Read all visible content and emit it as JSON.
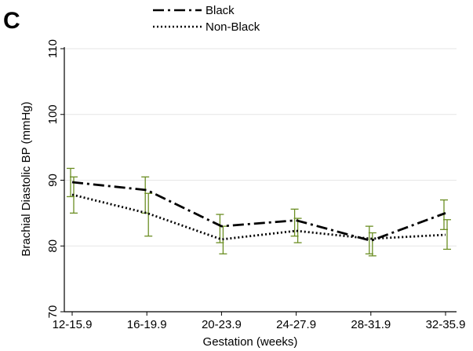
{
  "panel_label": "C",
  "chart_data": {
    "type": "line",
    "title": "",
    "xlabel": "Gestation (weeks)",
    "ylabel": "Brachial Diastolic BP (mmHg)",
    "categories": [
      "12-15.9",
      "16-19.9",
      "20-23.9",
      "24-27.9",
      "28-31.9",
      "32-35.9"
    ],
    "ylim": [
      70,
      110
    ],
    "yticks": [
      70,
      80,
      90,
      100,
      110
    ],
    "grid": true,
    "legend_position": "top-center",
    "series": [
      {
        "name": "Black",
        "style": "dash-dot",
        "values": [
          89.7,
          88.5,
          83.0,
          83.9,
          80.8,
          85.0
        ],
        "ci_low": [
          87.5,
          85.0,
          80.5,
          81.5,
          78.8,
          82.5
        ],
        "ci_high": [
          91.8,
          90.5,
          84.8,
          85.6,
          83.0,
          87.0
        ]
      },
      {
        "name": "Non-Black",
        "style": "dotted",
        "values": [
          87.8,
          85.0,
          81.0,
          82.3,
          81.1,
          81.7
        ],
        "ci_low": [
          85.0,
          81.5,
          78.8,
          80.5,
          78.5,
          79.5
        ],
        "ci_high": [
          90.5,
          88.0,
          83.0,
          84.2,
          82.0,
          84.0
        ]
      }
    ],
    "colors": {
      "line": "#000000",
      "error_bar": "#6b8e23",
      "grid": "#e6e6e6"
    }
  }
}
